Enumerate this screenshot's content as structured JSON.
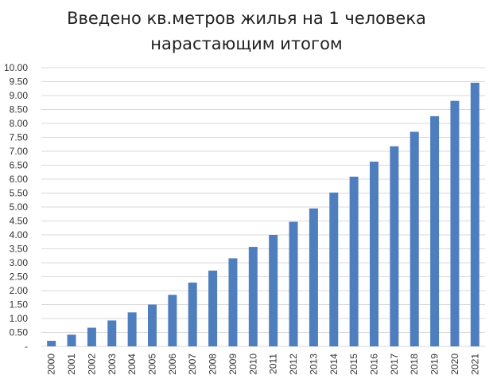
{
  "chart_data": {
    "type": "bar",
    "title_lines": [
      "Введено кв.метров жилья на 1 человека",
      "нарастающим итогом"
    ],
    "xlabel": "",
    "ylabel": "",
    "ylim": [
      0,
      10
    ],
    "y_ticks": [
      "-",
      "0.50",
      "1.00",
      "1.50",
      "2.00",
      "2.50",
      "3.00",
      "3.50",
      "4.00",
      "4.50",
      "5.00",
      "5.50",
      "6.00",
      "6.50",
      "7.00",
      "7.50",
      "8.00",
      "8.50",
      "9.00",
      "9.50",
      "10.00"
    ],
    "grid": true,
    "legend": "none",
    "bar_color": "#4F7EBE",
    "gridline_color": "#D9D9D9",
    "categories": [
      "2000",
      "2001",
      "2002",
      "2003",
      "2004",
      "2005",
      "2006",
      "2007",
      "2008",
      "2009",
      "2010",
      "2011",
      "2012",
      "2013",
      "2014",
      "2015",
      "2016",
      "2017",
      "2018",
      "2019",
      "2020",
      "2021"
    ],
    "values": [
      0.2,
      0.42,
      0.67,
      0.93,
      1.22,
      1.5,
      1.85,
      2.29,
      2.72,
      3.16,
      3.57,
      4.0,
      4.47,
      4.95,
      5.52,
      6.09,
      6.63,
      7.18,
      7.7,
      8.26,
      8.81,
      9.46
    ]
  }
}
